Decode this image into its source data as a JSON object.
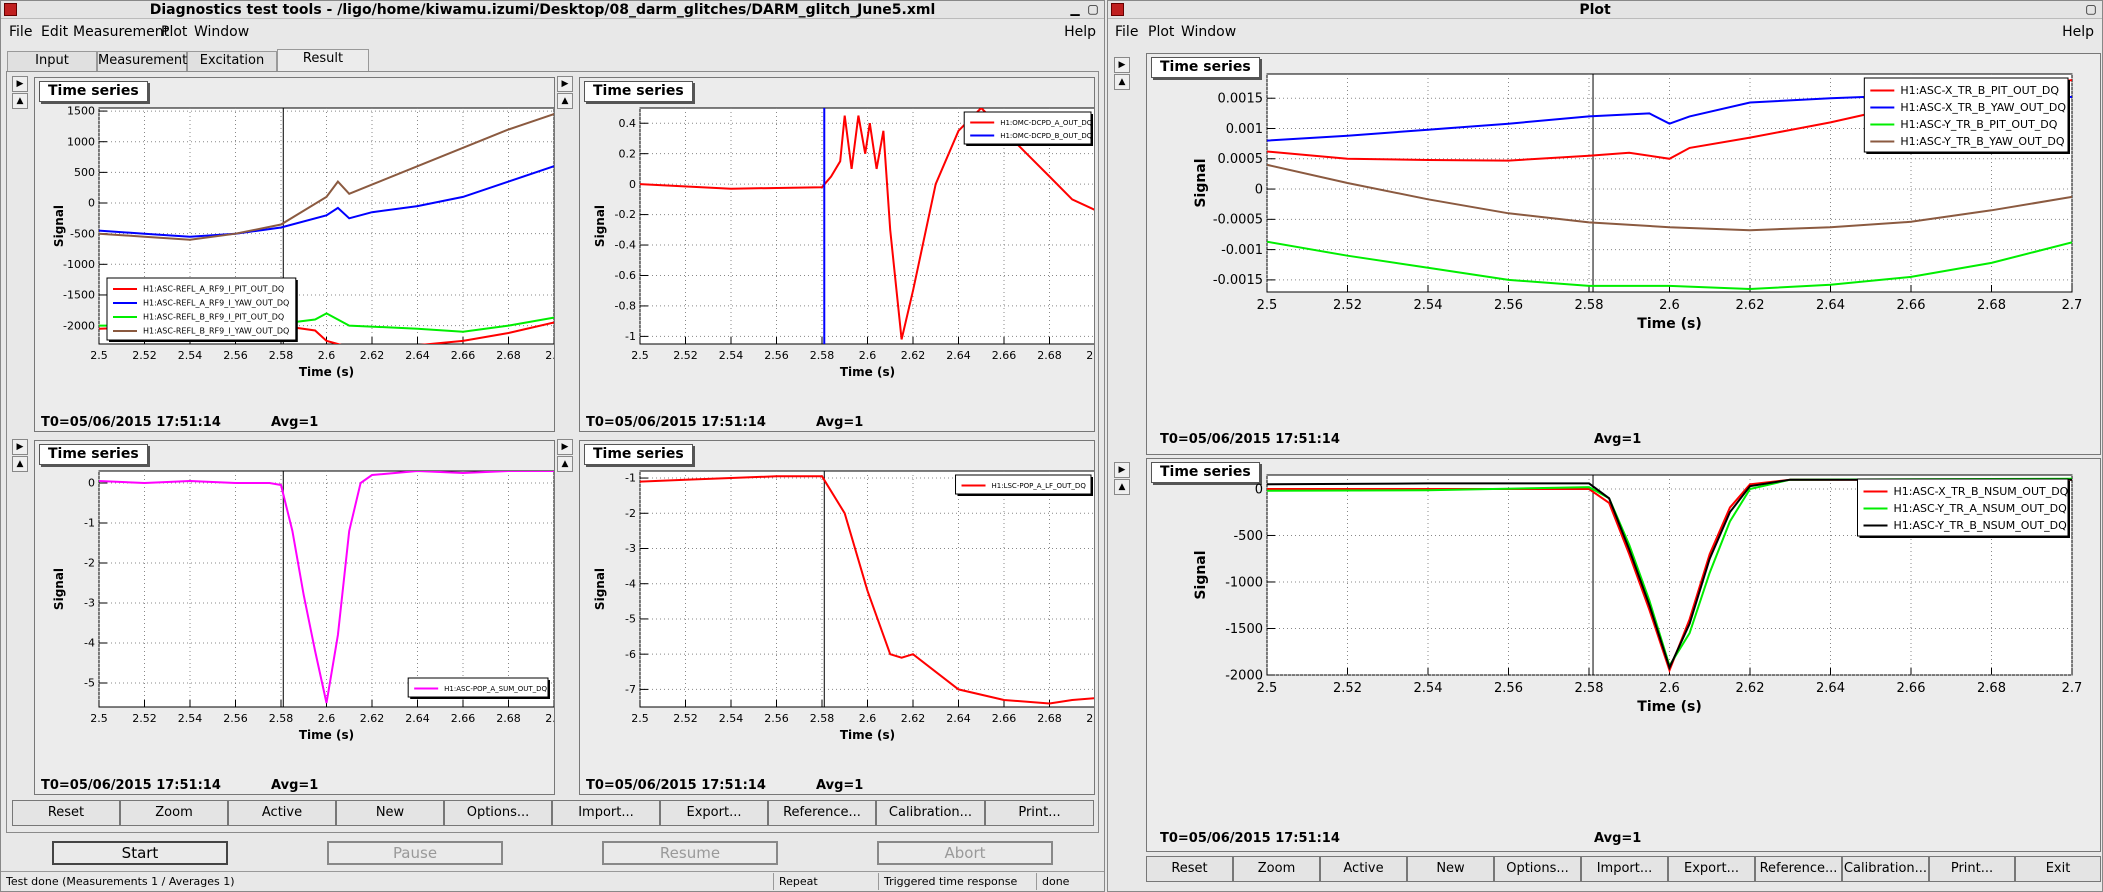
{
  "left_window": {
    "title": "Diagnostics test tools - /ligo/home/kiwamu.izumi/Desktop/08_darm_glitches/DARM_glitch_June5.xml",
    "menu": [
      "File",
      "Edit",
      "Measurement",
      "Plot",
      "Window"
    ],
    "help": "Help",
    "tabs": [
      "Input",
      "Measurement",
      "Excitation",
      "Result"
    ],
    "active_tab": "Result",
    "plot_buttons": [
      "Reset",
      "Zoom",
      "Active",
      "New",
      "Options...",
      "Import...",
      "Export...",
      "Reference...",
      "Calibration...",
      "Print..."
    ],
    "control_buttons": {
      "start": "Start",
      "pause": "Pause",
      "resume": "Resume",
      "abort": "Abort"
    },
    "status": {
      "message": "Test done (Measurements 1 / Averages 1)",
      "mode": "Repeat",
      "response": "Triggered time response",
      "state": "done"
    }
  },
  "right_window": {
    "title": "Plot",
    "menu": [
      "File",
      "Plot",
      "Window"
    ],
    "help": "Help",
    "plot_buttons": [
      "Reset",
      "Zoom",
      "Active",
      "New",
      "Options...",
      "Import...",
      "Export...",
      "Reference...",
      "Calibration...",
      "Print...",
      "Exit"
    ]
  },
  "icons": {
    "window": "window-icon",
    "minimize": "minimize-icon",
    "maximize": "maximize-icon",
    "close": "close-icon",
    "up": "arrow-up-icon",
    "right": "arrow-right-icon"
  },
  "colors": {
    "red": "#ff0000",
    "blue": "#0000ff",
    "green": "#00ee00",
    "brown": "#8b5a40",
    "magenta": "#ff00ff",
    "black": "#000000"
  },
  "plots": {
    "l1": {
      "tab": "Time series",
      "t0": "T0=05/06/2015 17:51:14",
      "avg": "Avg=1"
    },
    "l2": {
      "tab": "Time series",
      "t0": "T0=05/06/2015 17:51:14",
      "avg": "Avg=1"
    },
    "l3": {
      "tab": "Time series",
      "t0": "T0=05/06/2015 17:51:14",
      "avg": "Avg=1"
    },
    "l4": {
      "tab": "Time series",
      "t0": "T0=05/06/2015 17:51:14",
      "avg": "Avg=1"
    },
    "r1": {
      "tab": "Time series",
      "t0": "T0=05/06/2015 17:51:14",
      "avg": "Avg=1"
    },
    "r2": {
      "tab": "Time series",
      "t0": "T0=05/06/2015 17:51:14",
      "avg": "Avg=1"
    }
  },
  "chart_data": [
    {
      "id": "l1",
      "type": "line",
      "xlabel": "Time (s)",
      "ylabel": "Signal",
      "xlim": [
        2.5,
        2.7
      ],
      "ylim": [
        -2300,
        1550
      ],
      "cursor_x": 2.581,
      "xticks": [
        2.5,
        2.52,
        2.54,
        2.56,
        2.58,
        2.6,
        2.62,
        2.64,
        2.66,
        2.68,
        2.7
      ],
      "xtick_labels": [
        "2.5",
        "2.52",
        "2.54",
        "2.56",
        "2.58",
        "2.6",
        "2.62",
        "2.64",
        "2.66",
        "2.68",
        "2.7"
      ],
      "yticks": [
        1500,
        1000,
        500,
        0,
        -500,
        -1000,
        -1500,
        -2000
      ],
      "ytick_labels": [
        "1500",
        "1000",
        "500",
        "0",
        "-500",
        "-1000",
        "-1500",
        "-2000"
      ],
      "legend": "bottom-left",
      "legend_font": 8,
      "series": [
        {
          "name": "H1:ASC-REFL_A_RF9_I_PIT_OUT_DQ",
          "color": "#ff0000",
          "x": [
            2.5,
            2.54,
            2.58,
            2.595,
            2.6,
            2.61,
            2.62,
            2.64,
            2.66,
            2.68,
            2.7
          ],
          "y": [
            -2050,
            -2000,
            -2000,
            -2080,
            -2250,
            -2350,
            -2400,
            -2320,
            -2250,
            -2120,
            -1950
          ]
        },
        {
          "name": "H1:ASC-REFL_A_RF9_I_YAW_OUT_DQ",
          "color": "#0000ff",
          "x": [
            2.5,
            2.52,
            2.54,
            2.56,
            2.58,
            2.6,
            2.605,
            2.61,
            2.62,
            2.64,
            2.66,
            2.68,
            2.7
          ],
          "y": [
            -450,
            -500,
            -550,
            -500,
            -400,
            -200,
            -80,
            -250,
            -150,
            -50,
            100,
            350,
            600
          ]
        },
        {
          "name": "H1:ASC-REFL_B_RF9_I_PIT_OUT_DQ",
          "color": "#00ee00",
          "x": [
            2.5,
            2.54,
            2.58,
            2.595,
            2.6,
            2.61,
            2.64,
            2.66,
            2.68,
            2.7
          ],
          "y": [
            -2000,
            -2000,
            -1970,
            -1900,
            -1800,
            -2000,
            -2050,
            -2100,
            -2000,
            -1870
          ]
        },
        {
          "name": "H1:ASC-REFL_B_RF9_I_YAW_OUT_DQ",
          "color": "#8b5a40",
          "x": [
            2.5,
            2.52,
            2.54,
            2.56,
            2.58,
            2.6,
            2.605,
            2.61,
            2.62,
            2.64,
            2.66,
            2.68,
            2.7
          ],
          "y": [
            -500,
            -550,
            -600,
            -500,
            -350,
            100,
            350,
            150,
            300,
            600,
            900,
            1200,
            1450
          ]
        }
      ]
    },
    {
      "id": "l2",
      "type": "line",
      "xlabel": "Time (s)",
      "ylabel": "Signal",
      "xlim": [
        2.5,
        2.7
      ],
      "ylim": [
        -1.05,
        0.5
      ],
      "cursor_x": 2.581,
      "xticks": [
        2.5,
        2.52,
        2.54,
        2.56,
        2.58,
        2.6,
        2.62,
        2.64,
        2.66,
        2.68,
        2.7
      ],
      "xtick_labels": [
        "2.5",
        "2.52",
        "2.54",
        "2.56",
        "2.58",
        "2.6",
        "2.62",
        "2.64",
        "2.66",
        "2.68",
        "2.7"
      ],
      "yticks": [
        0.4,
        0.2,
        0,
        -0.2,
        -0.4,
        -0.6,
        -0.8,
        -1
      ],
      "ytick_labels": [
        "0.4",
        "0.2",
        "0",
        "-0.2",
        "-0.4",
        "-0.6",
        "-0.8",
        "-1"
      ],
      "legend": "top-right",
      "legend_font": 7,
      "series": [
        {
          "name": "H1:OMC-DCPD_A_OUT_DQ",
          "color": "#ff0000",
          "x": [
            2.5,
            2.54,
            2.58,
            2.584,
            2.588,
            2.59,
            2.593,
            2.596,
            2.599,
            2.601,
            2.604,
            2.607,
            2.61,
            2.615,
            2.62,
            2.63,
            2.64,
            2.65,
            2.66,
            2.67,
            2.68,
            2.69,
            2.7
          ],
          "y": [
            0.0,
            -0.03,
            -0.02,
            0.05,
            0.15,
            0.45,
            0.1,
            0.45,
            0.2,
            0.4,
            0.1,
            0.35,
            -0.3,
            -1.02,
            -0.7,
            0.0,
            0.35,
            0.5,
            0.35,
            0.2,
            0.05,
            -0.1,
            -0.17
          ]
        },
        {
          "name": "H1:OMC-DCPD_B_OUT_DQ",
          "color": "#0000ff",
          "x": [],
          "y": []
        }
      ]
    },
    {
      "id": "l3",
      "type": "line",
      "xlabel": "Time (s)",
      "ylabel": "Signal",
      "xlim": [
        2.5,
        2.7
      ],
      "ylim": [
        -5.6,
        0.3
      ],
      "cursor_x": 2.581,
      "xticks": [
        2.5,
        2.52,
        2.54,
        2.56,
        2.58,
        2.6,
        2.62,
        2.64,
        2.66,
        2.68,
        2.7
      ],
      "xtick_labels": [
        "2.5",
        "2.52",
        "2.54",
        "2.56",
        "2.58",
        "2.6",
        "2.62",
        "2.64",
        "2.66",
        "2.68",
        "2.7"
      ],
      "yticks": [
        0,
        -1,
        -2,
        -3,
        -4,
        -5
      ],
      "ytick_labels": [
        "0",
        "-1",
        "-2",
        "-3",
        "-4",
        "-5"
      ],
      "legend": "bottom-right",
      "legend_font": 7,
      "series": [
        {
          "name": "H1:ASC-POP_A_SUM_OUT_DQ",
          "color": "#ff00ff",
          "x": [
            2.5,
            2.52,
            2.54,
            2.56,
            2.575,
            2.58,
            2.585,
            2.59,
            2.595,
            2.6,
            2.605,
            2.61,
            2.615,
            2.62,
            2.64,
            2.66,
            2.68,
            2.7
          ],
          "y": [
            0.05,
            0.0,
            0.05,
            0.0,
            0.0,
            -0.05,
            -1.2,
            -2.8,
            -4.2,
            -5.5,
            -3.8,
            -1.2,
            0.0,
            0.2,
            0.3,
            0.25,
            0.3,
            0.3
          ]
        }
      ]
    },
    {
      "id": "l4",
      "type": "line",
      "xlabel": "Time (s)",
      "ylabel": "Signal",
      "xlim": [
        2.5,
        2.7
      ],
      "ylim": [
        -7.5,
        -0.8
      ],
      "cursor_x": 2.581,
      "xticks": [
        2.5,
        2.52,
        2.54,
        2.56,
        2.58,
        2.6,
        2.62,
        2.64,
        2.66,
        2.68,
        2.7
      ],
      "xtick_labels": [
        "2.5",
        "2.52",
        "2.54",
        "2.56",
        "2.58",
        "2.6",
        "2.62",
        "2.64",
        "2.66",
        "2.68",
        "2.7"
      ],
      "yticks": [
        -1,
        -2,
        -3,
        -4,
        -5,
        -6,
        -7
      ],
      "ytick_labels": [
        "-1",
        "-2",
        "-3",
        "-4",
        "-5",
        "-6",
        "-7"
      ],
      "legend": "top-right",
      "legend_font": 7,
      "series": [
        {
          "name": "H1:LSC-POP_A_LF_OUT_DQ",
          "color": "#ff0000",
          "x": [
            2.5,
            2.52,
            2.54,
            2.56,
            2.58,
            2.59,
            2.6,
            2.61,
            2.615,
            2.62,
            2.63,
            2.64,
            2.66,
            2.68,
            2.69,
            2.7
          ],
          "y": [
            -1.1,
            -1.05,
            -1.0,
            -0.95,
            -0.95,
            -2.0,
            -4.2,
            -6.0,
            -6.1,
            -6.0,
            -6.5,
            -7.0,
            -7.3,
            -7.4,
            -7.3,
            -7.25
          ]
        }
      ]
    },
    {
      "id": "r1",
      "type": "line",
      "xlabel": "Time (s)",
      "ylabel": "Signal",
      "xlim": [
        2.5,
        2.7
      ],
      "ylim": [
        -0.0017,
        0.0019
      ],
      "cursor_x": 2.581,
      "xticks": [
        2.5,
        2.52,
        2.54,
        2.56,
        2.58,
        2.6,
        2.62,
        2.64,
        2.66,
        2.68,
        2.7
      ],
      "xtick_labels": [
        "2.5",
        "2.52",
        "2.54",
        "2.56",
        "2.58",
        "2.6",
        "2.62",
        "2.64",
        "2.66",
        "2.68",
        "2.7"
      ],
      "yticks": [
        0.0015,
        0.001,
        0.0005,
        0,
        -0.0005,
        -0.001,
        -0.0015
      ],
      "ytick_labels": [
        "0.0015",
        "0.001",
        "0.0005",
        "0",
        "-0.0005",
        "-0.001",
        "-0.0015"
      ],
      "legend": "top-right",
      "legend_font": 11,
      "series": [
        {
          "name": "H1:ASC-X_TR_B_PIT_OUT_DQ",
          "color": "#ff0000",
          "x": [
            2.5,
            2.52,
            2.54,
            2.56,
            2.58,
            2.59,
            2.6,
            2.605,
            2.62,
            2.64,
            2.66,
            2.68,
            2.7
          ],
          "y": [
            0.00062,
            0.0005,
            0.00048,
            0.00047,
            0.00055,
            0.0006,
            0.0005,
            0.00068,
            0.00085,
            0.0011,
            0.0014,
            0.00165,
            0.0018
          ]
        },
        {
          "name": "H1:ASC-X_TR_B_YAW_OUT_DQ",
          "color": "#0000ff",
          "x": [
            2.5,
            2.52,
            2.54,
            2.56,
            2.58,
            2.595,
            2.6,
            2.605,
            2.62,
            2.64,
            2.66,
            2.68,
            2.7
          ],
          "y": [
            0.0008,
            0.00088,
            0.00098,
            0.00108,
            0.0012,
            0.00125,
            0.00108,
            0.0012,
            0.00143,
            0.0015,
            0.00155,
            0.00158,
            0.00152
          ]
        },
        {
          "name": "H1:ASC-Y_TR_B_PIT_OUT_DQ",
          "color": "#00ee00",
          "x": [
            2.5,
            2.52,
            2.54,
            2.56,
            2.58,
            2.6,
            2.62,
            2.64,
            2.66,
            2.68,
            2.7
          ],
          "y": [
            -0.00087,
            -0.0011,
            -0.0013,
            -0.0015,
            -0.0016,
            -0.0016,
            -0.00165,
            -0.00158,
            -0.00145,
            -0.00122,
            -0.00088
          ]
        },
        {
          "name": "H1:ASC-Y_TR_B_YAW_OUT_DQ",
          "color": "#8b5a40",
          "x": [
            2.5,
            2.52,
            2.54,
            2.56,
            2.58,
            2.6,
            2.62,
            2.64,
            2.66,
            2.68,
            2.7
          ],
          "y": [
            0.0004,
            0.0001,
            -0.00017,
            -0.0004,
            -0.00055,
            -0.00063,
            -0.00068,
            -0.00063,
            -0.00054,
            -0.00035,
            -0.00013
          ]
        }
      ]
    },
    {
      "id": "r2",
      "type": "line",
      "xlabel": "Time (s)",
      "ylabel": "Signal",
      "xlim": [
        2.5,
        2.7
      ],
      "ylim": [
        -2000,
        150
      ],
      "cursor_x": 2.581,
      "xticks": [
        2.5,
        2.52,
        2.54,
        2.56,
        2.58,
        2.6,
        2.62,
        2.64,
        2.66,
        2.68,
        2.7
      ],
      "xtick_labels": [
        "2.5",
        "2.52",
        "2.54",
        "2.56",
        "2.58",
        "2.6",
        "2.62",
        "2.64",
        "2.66",
        "2.68",
        "2.7"
      ],
      "yticks": [
        0,
        -500,
        -1000,
        -1500,
        -2000
      ],
      "ytick_labels": [
        "0",
        "-500",
        "-1000",
        "-1500",
        "-2000"
      ],
      "legend": "top-right",
      "legend_font": 11,
      "series": [
        {
          "name": "H1:ASC-X_TR_B_NSUM_OUT_DQ",
          "color": "#ff0000",
          "x": [
            2.5,
            2.54,
            2.58,
            2.585,
            2.59,
            2.595,
            2.6,
            2.605,
            2.61,
            2.615,
            2.62,
            2.63,
            2.7
          ],
          "y": [
            0,
            0,
            0,
            -150,
            -700,
            -1300,
            -1950,
            -1400,
            -700,
            -200,
            50,
            100,
            100
          ]
        },
        {
          "name": "H1:ASC-Y_TR_A_NSUM_OUT_DQ",
          "color": "#00ee00",
          "x": [
            2.5,
            2.54,
            2.58,
            2.585,
            2.59,
            2.595,
            2.6,
            2.605,
            2.61,
            2.615,
            2.62,
            2.63,
            2.7
          ],
          "y": [
            -20,
            -15,
            20,
            -100,
            -600,
            -1200,
            -1900,
            -1550,
            -900,
            -350,
            0,
            100,
            110
          ]
        },
        {
          "name": "H1:ASC-Y_TR_B_NSUM_OUT_DQ",
          "color": "#000000",
          "x": [
            2.5,
            2.54,
            2.58,
            2.585,
            2.59,
            2.595,
            2.6,
            2.605,
            2.61,
            2.615,
            2.62,
            2.63,
            2.7
          ],
          "y": [
            50,
            60,
            60,
            -100,
            -650,
            -1250,
            -1920,
            -1450,
            -750,
            -250,
            30,
            100,
            100
          ]
        }
      ]
    }
  ]
}
